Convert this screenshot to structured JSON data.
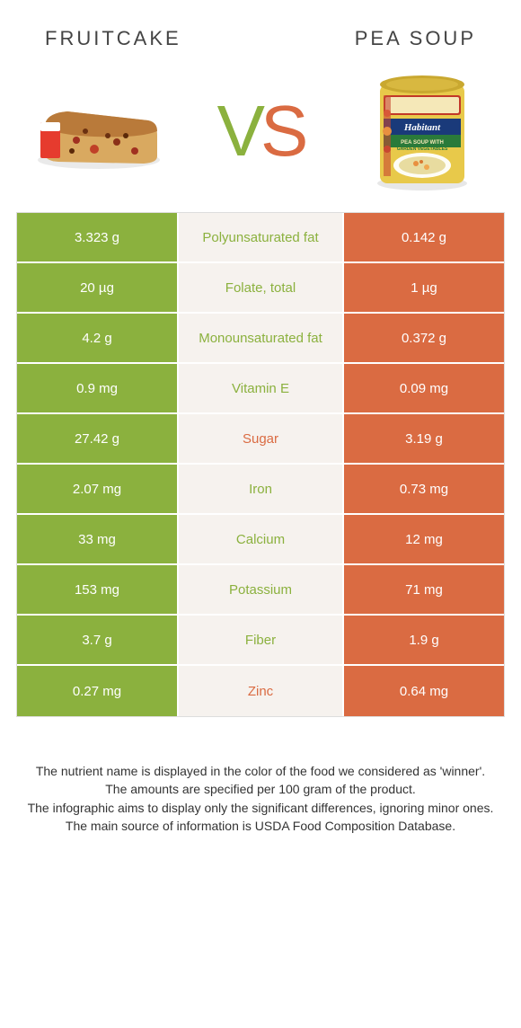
{
  "header": {
    "left": "FRUITCAKE",
    "right": "PEA SOUP"
  },
  "colors": {
    "green": "#8bb13e",
    "orange": "#da6b42",
    "mid_bg": "#f6f2ee",
    "row_border": "#ffffff"
  },
  "vs": {
    "v": "V",
    "s": "S"
  },
  "rows": [
    {
      "left": "3.323 g",
      "label": "Polyunsaturated fat",
      "right": "0.142 g",
      "winner": "green"
    },
    {
      "left": "20 µg",
      "label": "Folate, total",
      "right": "1 µg",
      "winner": "green"
    },
    {
      "left": "4.2 g",
      "label": "Monounsaturated fat",
      "right": "0.372 g",
      "winner": "green"
    },
    {
      "left": "0.9 mg",
      "label": "Vitamin E",
      "right": "0.09 mg",
      "winner": "green"
    },
    {
      "left": "27.42 g",
      "label": "Sugar",
      "right": "3.19 g",
      "winner": "orange"
    },
    {
      "left": "2.07 mg",
      "label": "Iron",
      "right": "0.73 mg",
      "winner": "green"
    },
    {
      "left": "33 mg",
      "label": "Calcium",
      "right": "12 mg",
      "winner": "green"
    },
    {
      "left": "153 mg",
      "label": "Potassium",
      "right": "71 mg",
      "winner": "green"
    },
    {
      "left": "3.7 g",
      "label": "Fiber",
      "right": "1.9 g",
      "winner": "green"
    },
    {
      "left": "0.27 mg",
      "label": "Zinc",
      "right": "0.64 mg",
      "winner": "orange"
    }
  ],
  "footer": {
    "l1": "The nutrient name is displayed in the color of the food we considered as 'winner'.",
    "l2": "The amounts are specified per 100 gram of the product.",
    "l3": "The infographic aims to display only the significant differences, ignoring minor ones.",
    "l4": "The main source of information is USDA Food Composition Database."
  }
}
